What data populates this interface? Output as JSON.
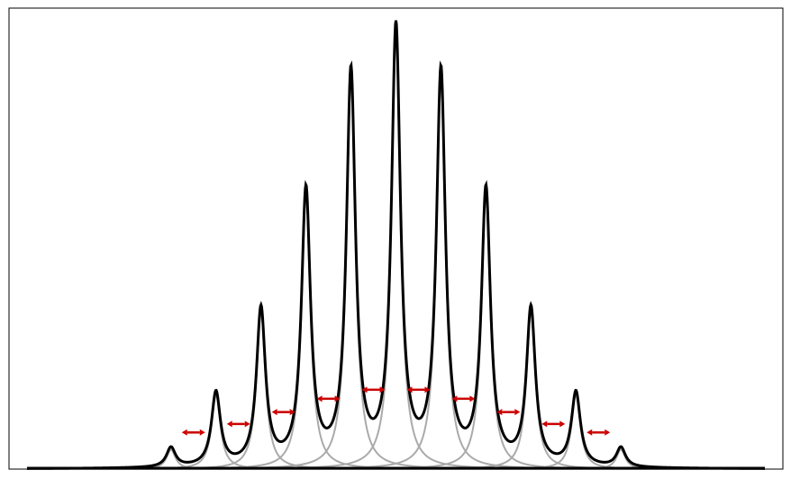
{
  "chart_data": {
    "type": "line",
    "title": "",
    "xlabel": "",
    "ylabel": "",
    "grid": false,
    "legend": "none",
    "xlim": [
      -8.6,
      8.6
    ],
    "ylim": [
      0,
      1.06
    ],
    "components": {
      "shape": "lorentzian",
      "centers": [
        -5,
        -4,
        -3,
        -2,
        -1,
        0,
        1,
        2,
        3,
        4,
        5
      ],
      "amplitudes": [
        0.045,
        0.17,
        0.36,
        0.63,
        0.9,
        1.0,
        0.9,
        0.63,
        0.36,
        0.17,
        0.045
      ],
      "half_width": 0.12
    },
    "series": [
      {
        "role": "sum_envelope",
        "color": "#000000"
      },
      {
        "role": "individual_components",
        "color": "#aaaaaa"
      }
    ],
    "annotations": {
      "type": "double_arrow",
      "color": "#cc0000",
      "midpoints_x": [
        -4.5,
        -3.5,
        -2.5,
        -1.5,
        -0.5,
        0.5,
        1.5,
        2.5,
        3.5,
        4.5
      ]
    }
  }
}
